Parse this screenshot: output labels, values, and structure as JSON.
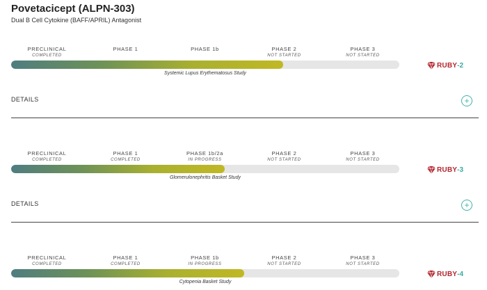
{
  "header": {
    "title": "Povetacicept (ALPN-303)",
    "subtitle": "Dual B Cell Cytokine (BAFF/APRIL) Antagonist"
  },
  "colors": {
    "progress_start": "#4f7d80",
    "progress_end": "#c0b825",
    "track": "#e6e6e6",
    "ruby_red": "#b3262e",
    "ruby_teal": "#3aa9a3",
    "accent": "#43b2a8"
  },
  "details_label": "DETAILS",
  "studies": [
    {
      "phases": [
        {
          "name": "PRECLINICAL",
          "status": "COMPLETED"
        },
        {
          "name": "PHASE 1",
          "status": ""
        },
        {
          "name": "PHASE 1b",
          "status": ""
        },
        {
          "name": "PHASE 2",
          "status": "NOT STARTED"
        },
        {
          "name": "PHASE 3",
          "status": "NOT STARTED"
        }
      ],
      "progress": 0.7,
      "study_name": "Systemic Lupus Erythematosus Study",
      "trial_label": "RUBY",
      "trial_number": "-2"
    },
    {
      "phases": [
        {
          "name": "PRECLINICAL",
          "status": "COMPLETED"
        },
        {
          "name": "PHASE 1",
          "status": "COMPLETED"
        },
        {
          "name": "PHASE 1b/2a",
          "status": "IN PROGRESS"
        },
        {
          "name": "PHASE 2",
          "status": "NOT STARTED"
        },
        {
          "name": "PHASE 3",
          "status": "NOT STARTED"
        }
      ],
      "progress": 0.55,
      "study_name": "Glomerulonephritis Basket Study",
      "trial_label": "RUBY",
      "trial_number": "-3"
    },
    {
      "phases": [
        {
          "name": "PRECLINICAL",
          "status": "COMPLETED"
        },
        {
          "name": "PHASE 1",
          "status": "COMPLETED"
        },
        {
          "name": "PHASE 1b",
          "status": "IN PROGRESS"
        },
        {
          "name": "PHASE 2",
          "status": "NOT STARTED"
        },
        {
          "name": "PHASE 3",
          "status": "NOT STARTED"
        }
      ],
      "progress": 0.6,
      "study_name": "Cytopenia Basket Study",
      "trial_label": "RUBY",
      "trial_number": "-4"
    }
  ]
}
